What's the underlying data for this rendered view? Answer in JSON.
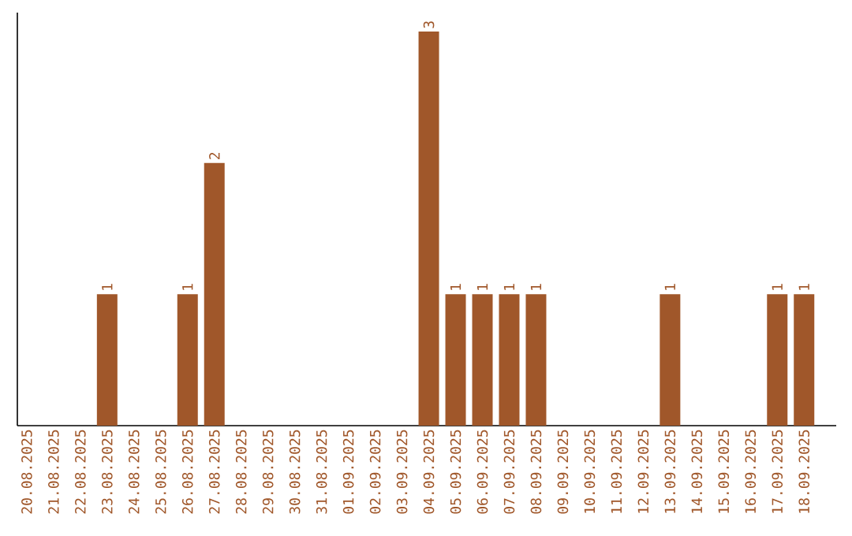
{
  "chart_data": {
    "type": "bar",
    "categories": [
      "20.08.2025",
      "21.08.2025",
      "22.08.2025",
      "23.08.2025",
      "24.08.2025",
      "25.08.2025",
      "26.08.2025",
      "27.08.2025",
      "28.08.2025",
      "29.08.2025",
      "30.08.2025",
      "31.08.2025",
      "01.09.2025",
      "02.09.2025",
      "03.09.2025",
      "04.09.2025",
      "05.09.2025",
      "06.09.2025",
      "07.09.2025",
      "08.09.2025",
      "09.09.2025",
      "10.09.2025",
      "11.09.2025",
      "12.09.2025",
      "13.09.2025",
      "14.09.2025",
      "15.09.2025",
      "16.09.2025",
      "17.09.2025",
      "18.09.2025"
    ],
    "values": [
      0,
      0,
      0,
      1,
      0,
      0,
      1,
      2,
      0,
      0,
      0,
      0,
      0,
      0,
      0,
      3,
      1,
      1,
      1,
      1,
      0,
      0,
      0,
      0,
      1,
      0,
      0,
      0,
      1,
      1
    ],
    "value_labels": [
      null,
      null,
      null,
      "1",
      null,
      null,
      "1",
      "2",
      null,
      null,
      null,
      null,
      null,
      null,
      null,
      "3",
      "1",
      "1",
      "1",
      "1",
      null,
      null,
      null,
      null,
      "1",
      null,
      null,
      null,
      "1",
      "1"
    ],
    "color": "#a0572a"
  }
}
